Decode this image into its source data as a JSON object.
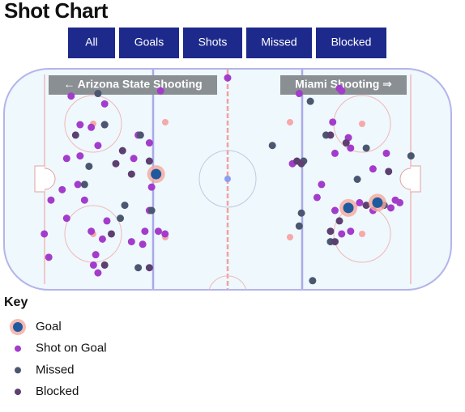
{
  "chart_data": {
    "type": "scatter",
    "title": "Shot Chart",
    "buttons": [
      "All",
      "Goals",
      "Shots",
      "Missed",
      "Blocked"
    ],
    "annotations": [
      "←  Arizona State Shooting",
      "Miami Shooting  ⇒"
    ],
    "legend_title": "Key",
    "xlim": [
      -100,
      100
    ],
    "ylim": [
      -42.5,
      42.5
    ],
    "series": [
      {
        "name": "Goal",
        "color": "#1f5a9e",
        "x": [
          -32,
          54,
          67
        ],
        "y": [
          2,
          -11,
          -9
        ]
      },
      {
        "name": "Shot on Goal",
        "color": "#a33ccb",
        "x": [
          0,
          -70,
          -55,
          -30,
          -66,
          -61,
          -55,
          -72,
          -66,
          -58,
          -40,
          -42,
          -35,
          -34,
          -79,
          -74,
          -64,
          -72,
          -54,
          -61,
          -56,
          -43,
          -37,
          -38,
          -82,
          -80,
          -60,
          -58,
          -31,
          -28,
          -35,
          -59,
          -67,
          32,
          50,
          51,
          47,
          54,
          48,
          55,
          71,
          29,
          42,
          48,
          65,
          65,
          75,
          77,
          73,
          55,
          51,
          59,
          40
        ],
        "y": [
          39,
          32,
          29,
          34,
          21,
          20,
          21,
          8,
          9,
          13,
          17,
          8,
          14,
          -3,
          -8,
          -4,
          -8,
          -15,
          -16,
          -20,
          -23,
          -24,
          -20,
          -25,
          -21,
          -30,
          -33,
          -36,
          -20,
          -21,
          -12,
          -29,
          -2,
          33,
          35,
          34,
          22,
          16,
          10,
          12,
          10,
          6,
          -2,
          -12,
          4,
          -12,
          -8,
          -9,
          -11,
          -20,
          -21,
          -9,
          -7
        ]
      },
      {
        "name": "Missed",
        "color": "#4b5670",
        "x": [
          -58,
          -55,
          -62,
          -64,
          -46,
          -48,
          -39,
          -34,
          44,
          20,
          62,
          58,
          70,
          82,
          34,
          32,
          46,
          38,
          33,
          37,
          -40
        ],
        "y": [
          33,
          21,
          5,
          -2,
          -10,
          -15,
          17,
          -12,
          17,
          13,
          12,
          0,
          -10,
          9,
          7,
          -18,
          -24,
          -39,
          -13,
          30,
          -34
        ]
      },
      {
        "name": "Blocked",
        "color": "#5d3f70",
        "x": [
          -68,
          -47,
          -50,
          -43,
          -35,
          -35,
          -55,
          -52,
          46,
          48,
          50,
          62,
          72,
          46,
          53,
          31,
          33
        ],
        "y": [
          17,
          11,
          6,
          2,
          7,
          -34,
          -33,
          -21,
          -20,
          -24,
          -16,
          -10,
          3,
          17,
          14,
          7,
          6
        ]
      }
    ]
  }
}
